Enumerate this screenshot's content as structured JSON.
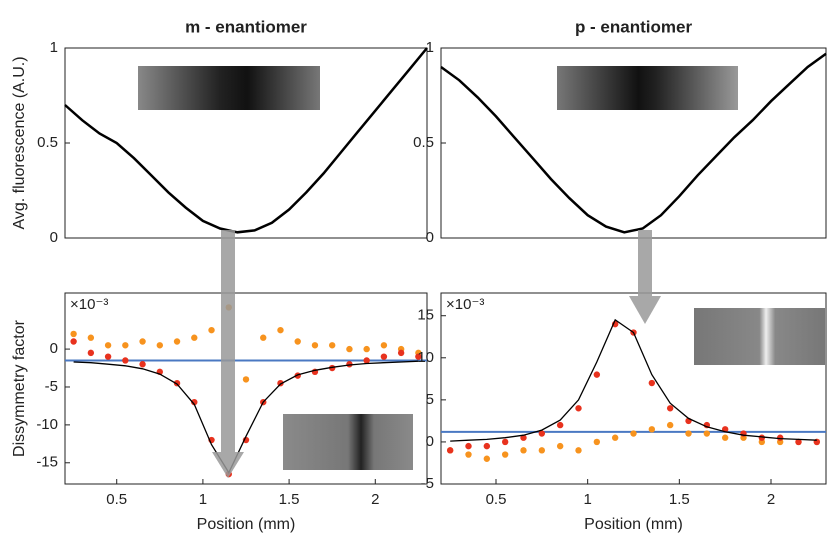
{
  "chart_data": [
    {
      "type": "line",
      "title": "m - enantiomer",
      "ylabel": "Avg. fluorescence (A.U.)",
      "x": [
        0.2,
        0.3,
        0.4,
        0.5,
        0.6,
        0.7,
        0.8,
        0.9,
        1.0,
        1.1,
        1.2,
        1.3,
        1.4,
        1.5,
        1.6,
        1.7,
        1.8,
        1.9,
        2.0,
        2.1,
        2.2,
        2.3
      ],
      "series": [
        {
          "color": "#000000",
          "mode": "line",
          "values": [
            0.7,
            0.62,
            0.55,
            0.5,
            0.42,
            0.33,
            0.24,
            0.16,
            0.09,
            0.05,
            0.03,
            0.04,
            0.08,
            0.15,
            0.24,
            0.34,
            0.45,
            0.56,
            0.67,
            0.78,
            0.89,
            1.0
          ]
        }
      ],
      "xlim": [
        0.2,
        2.3
      ],
      "ylim": [
        0,
        1
      ],
      "yticks": [
        0,
        0.5,
        1
      ]
    },
    {
      "type": "line",
      "title": "p - enantiomer",
      "x": [
        0.2,
        0.3,
        0.4,
        0.5,
        0.6,
        0.7,
        0.8,
        0.9,
        1.0,
        1.1,
        1.2,
        1.3,
        1.4,
        1.5,
        1.6,
        1.7,
        1.8,
        1.9,
        2.0,
        2.1,
        2.2,
        2.3
      ],
      "series": [
        {
          "color": "#000000",
          "mode": "line",
          "values": [
            0.9,
            0.83,
            0.74,
            0.64,
            0.53,
            0.42,
            0.31,
            0.21,
            0.12,
            0.06,
            0.03,
            0.05,
            0.12,
            0.22,
            0.33,
            0.43,
            0.53,
            0.62,
            0.72,
            0.81,
            0.9,
            0.97
          ]
        }
      ],
      "xlim": [
        0.2,
        2.3
      ],
      "ylim": [
        0,
        1
      ],
      "yticks": [
        0,
        0.5,
        1
      ]
    },
    {
      "type": "scatter",
      "ylabel": "Dissymmetry factor",
      "xlabel": "Position (mm)",
      "multiplier": "×10⁻³",
      "x": [
        0.25,
        0.35,
        0.45,
        0.55,
        0.65,
        0.75,
        0.85,
        0.95,
        1.05,
        1.15,
        1.25,
        1.35,
        1.45,
        1.55,
        1.65,
        1.75,
        1.85,
        1.95,
        2.05,
        2.15,
        2.25
      ],
      "series": [
        {
          "color": "#f7931e",
          "mode": "markers",
          "values": [
            2,
            1.5,
            0.5,
            0.5,
            1,
            0.5,
            1,
            1.5,
            2.5,
            5.5,
            -4,
            1.5,
            2.5,
            1,
            0.5,
            0.5,
            0,
            0,
            0.5,
            0,
            -0.5
          ]
        },
        {
          "color": "#e8321e",
          "mode": "markers",
          "values": [
            1,
            -0.5,
            -1,
            -1.5,
            -2,
            -3,
            -4.5,
            -7,
            -12,
            -16.5,
            -12,
            -7,
            -4.5,
            -3.5,
            -3,
            -2.5,
            -2,
            -1.5,
            -1,
            -0.5,
            -1
          ]
        },
        {
          "color": "#000000",
          "mode": "line",
          "values": [
            -1.7,
            -1.8,
            -2,
            -2.2,
            -2.6,
            -3.3,
            -4.6,
            -7.3,
            -12.6,
            -16.3,
            -11.5,
            -7,
            -4.6,
            -3.4,
            -2.8,
            -2.4,
            -2.1,
            -1.9,
            -1.8,
            -1.7,
            -1.6
          ]
        }
      ],
      "hline": -1.5,
      "hline_color": "#4a78c2",
      "xlim": [
        0.2,
        2.3
      ],
      "ylim": [
        -17.8,
        7.4
      ],
      "xticks": [
        0.5,
        1,
        1.5,
        2
      ],
      "yticks": [
        -15,
        -10,
        -5,
        0
      ]
    },
    {
      "type": "scatter",
      "xlabel": "Position (mm)",
      "multiplier": "×10⁻³",
      "x": [
        0.25,
        0.35,
        0.45,
        0.55,
        0.65,
        0.75,
        0.85,
        0.95,
        1.05,
        1.15,
        1.25,
        1.35,
        1.45,
        1.55,
        1.65,
        1.75,
        1.85,
        1.95,
        2.05,
        2.15,
        2.25
      ],
      "series": [
        {
          "color": "#f7931e",
          "mode": "markers",
          "values": [
            -1,
            -1.5,
            -2,
            -1.5,
            -1,
            -1,
            -0.5,
            -1,
            0,
            0.5,
            1,
            1.5,
            2,
            1,
            1,
            0.5,
            0.5,
            0,
            0,
            0,
            0
          ]
        },
        {
          "color": "#e8321e",
          "mode": "markers",
          "values": [
            -1,
            -0.5,
            -0.5,
            0,
            0.5,
            1,
            2,
            4,
            8,
            14,
            13,
            7,
            4,
            2.5,
            2,
            1.5,
            1,
            0.5,
            0.5,
            0,
            0
          ]
        },
        {
          "color": "#000000",
          "mode": "line",
          "values": [
            0.1,
            0.2,
            0.3,
            0.5,
            0.8,
            1.4,
            2.6,
            5,
            9.5,
            14.5,
            13,
            8,
            4.6,
            2.8,
            1.8,
            1.2,
            0.8,
            0.6,
            0.4,
            0.3,
            0.2
          ]
        }
      ],
      "hline": 1.2,
      "hline_color": "#4a78c2",
      "xlim": [
        0.2,
        2.3
      ],
      "ylim": [
        -5,
        17.7
      ],
      "xticks": [
        0.5,
        1,
        1.5,
        2
      ],
      "yticks": [
        -5,
        0,
        5,
        10,
        15
      ]
    }
  ]
}
